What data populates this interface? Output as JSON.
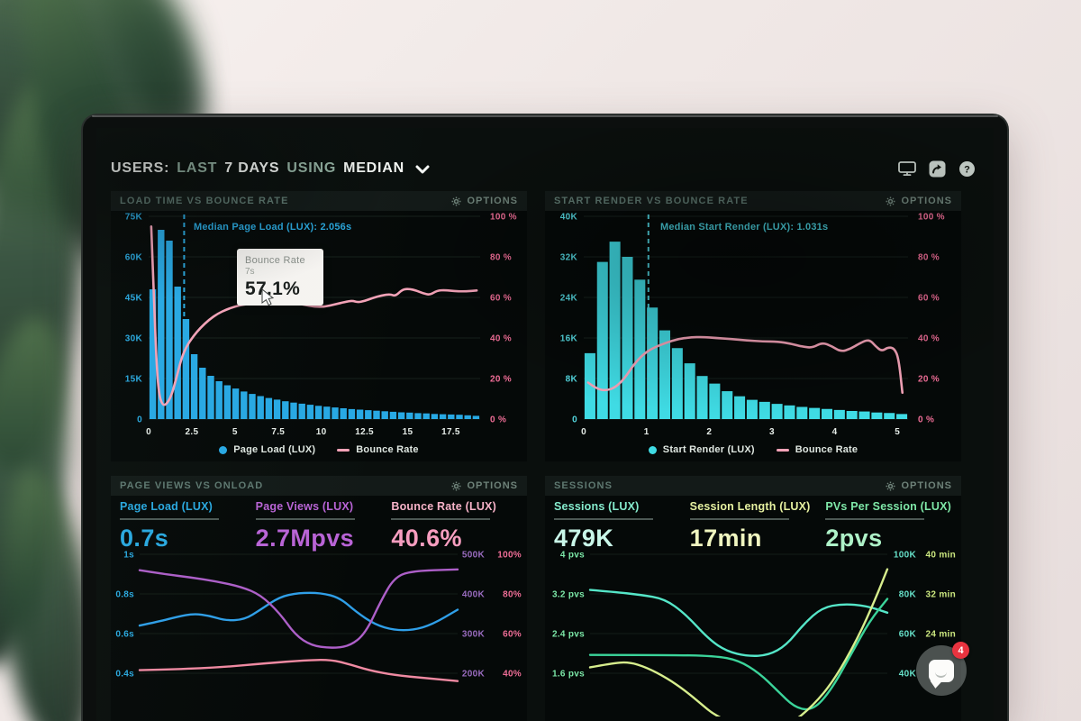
{
  "header": {
    "segments": [
      "USERS:",
      "LAST",
      "7 DAYS",
      "USING",
      "MEDIAN"
    ]
  },
  "ui": {
    "options_label": "OPTIONS",
    "help_glyph": "?"
  },
  "chat": {
    "badge": "4"
  },
  "panels": {
    "tl": {
      "title": "LOAD TIME VS BOUNCE RATE",
      "median_label": "Median Page Load (LUX): 2.056s",
      "tooltip": {
        "title": "Bounce Rate",
        "sub": "7s",
        "value": "57.1%"
      },
      "legend": [
        "Page Load (LUX)",
        "Bounce Rate"
      ],
      "chart_data": {
        "type": "histogram+line",
        "y_left": [
          "75K",
          "60K",
          "45K",
          "30K",
          "15K",
          "0"
        ],
        "y_right": [
          "100 %",
          "80 %",
          "60 %",
          "40 %",
          "20 %",
          "0 %"
        ],
        "x_labels": [
          "0",
          "2.5",
          "5",
          "7.5",
          "10",
          "12.5",
          "15",
          "17.5"
        ],
        "bar_max": 75,
        "x_max": 19.2,
        "line_max": 100,
        "median_x": 2.056,
        "bars": [
          48,
          70,
          66,
          49,
          37,
          24,
          19,
          16,
          14,
          12.5,
          11.3,
          10.2,
          9.3,
          8.5,
          7.8,
          7.2,
          6.6,
          6.1,
          5.7,
          5.3,
          4.9,
          4.6,
          4.3,
          4.0,
          3.7,
          3.5,
          3.3,
          3.1,
          2.9,
          2.7,
          2.5,
          2.4,
          2.2,
          2.1,
          1.9,
          1.8,
          1.7,
          1.6,
          1.4,
          1.2
        ],
        "line": [
          [
            0.15,
            95
          ],
          [
            0.3,
            62
          ],
          [
            0.45,
            28
          ],
          [
            0.6,
            12
          ],
          [
            0.8,
            7
          ],
          [
            1.0,
            7
          ],
          [
            1.3,
            11
          ],
          [
            1.6,
            20
          ],
          [
            1.9,
            30
          ],
          [
            2.2,
            36
          ],
          [
            2.6,
            41
          ],
          [
            3.0,
            45
          ],
          [
            3.5,
            49
          ],
          [
            4.0,
            52
          ],
          [
            4.5,
            54
          ],
          [
            5.0,
            55.5
          ],
          [
            5.5,
            56.5
          ],
          [
            6.0,
            57
          ],
          [
            6.5,
            57
          ],
          [
            7.0,
            57.1
          ],
          [
            7.5,
            57.6
          ],
          [
            8.0,
            57.6
          ],
          [
            8.5,
            57.2
          ],
          [
            9.0,
            56.4
          ],
          [
            9.6,
            55.4
          ],
          [
            10.2,
            55.4
          ],
          [
            10.8,
            56.6
          ],
          [
            11.4,
            57.8
          ],
          [
            11.8,
            58.4
          ],
          [
            12.1,
            57.6
          ],
          [
            12.5,
            58.2
          ],
          [
            13.0,
            59.8
          ],
          [
            13.5,
            61
          ],
          [
            14.0,
            61.6
          ],
          [
            14.3,
            60.6
          ],
          [
            14.7,
            64
          ],
          [
            15.1,
            64.2
          ],
          [
            15.5,
            63.4
          ],
          [
            15.9,
            62
          ],
          [
            16.3,
            61.2
          ],
          [
            16.7,
            63.4
          ],
          [
            17.2,
            63.6
          ],
          [
            17.8,
            63
          ],
          [
            18.4,
            63
          ],
          [
            19.0,
            63.4
          ]
        ],
        "colors": {
          "bars": "#28a9e4",
          "line": "#f4a3b8",
          "median": "#2aa9e0",
          "axis_left": "#2aa9e0",
          "axis_right": "#ee6d96",
          "axis_x": "#e6ede8"
        }
      }
    },
    "tr": {
      "title": "START RENDER VS BOUNCE RATE",
      "median_label": "Median Start Render (LUX): 1.031s",
      "legend": [
        "Start Render (LUX)",
        "Bounce Rate"
      ],
      "chart_data": {
        "type": "histogram+line",
        "y_left": [
          "40K",
          "32K",
          "24K",
          "16K",
          "8K",
          "0"
        ],
        "y_right": [
          "100 %",
          "80 %",
          "60 %",
          "40 %",
          "20 %",
          "0 %"
        ],
        "x_labels": [
          "0",
          "1",
          "2",
          "3",
          "4",
          "5"
        ],
        "bar_max": 40,
        "x_max": 5.17,
        "line_max": 100,
        "median_x": 1.031,
        "bars": [
          13,
          31,
          35,
          32,
          27.5,
          22,
          17.5,
          14,
          11,
          8.5,
          7,
          5.5,
          4.5,
          3.8,
          3.4,
          3.0,
          2.7,
          2.4,
          2.2,
          2.0,
          1.8,
          1.6,
          1.5,
          1.3,
          1.2,
          1.0
        ],
        "line": [
          [
            0.07,
            18
          ],
          [
            0.2,
            15
          ],
          [
            0.35,
            14
          ],
          [
            0.5,
            15.5
          ],
          [
            0.65,
            20
          ],
          [
            0.8,
            27
          ],
          [
            0.95,
            32
          ],
          [
            1.1,
            35
          ],
          [
            1.3,
            37.5
          ],
          [
            1.5,
            39.5
          ],
          [
            1.7,
            40.3
          ],
          [
            1.9,
            40.5
          ],
          [
            2.1,
            40
          ],
          [
            2.35,
            39.5
          ],
          [
            2.6,
            38.8
          ],
          [
            2.85,
            38.3
          ],
          [
            3.1,
            38.2
          ],
          [
            3.3,
            37.2
          ],
          [
            3.5,
            35.6
          ],
          [
            3.65,
            35.2
          ],
          [
            3.8,
            37.8
          ],
          [
            3.95,
            36
          ],
          [
            4.1,
            33.2
          ],
          [
            4.25,
            34.6
          ],
          [
            4.4,
            37.4
          ],
          [
            4.55,
            39.4
          ],
          [
            4.65,
            36
          ],
          [
            4.75,
            33.4
          ],
          [
            4.85,
            35.4
          ],
          [
            4.95,
            35
          ],
          [
            5.02,
            30
          ],
          [
            5.08,
            13
          ]
        ],
        "colors": {
          "bars": "#3fdbe4",
          "line": "#f4a3b8",
          "median": "#4fd0dc",
          "axis_left": "#53d6de",
          "axis_right": "#ee6d96",
          "axis_x": "#e6ede8"
        }
      }
    },
    "bl": {
      "title": "PAGE VIEWS VS ONLOAD",
      "metrics": [
        {
          "label": "Page Load (LUX)",
          "value": "0.7s",
          "color": "#2aa9e0"
        },
        {
          "label": "Page Views (LUX)",
          "value": "2.7Mpvs",
          "color": "#b964d6"
        },
        {
          "label": "Bounce Rate (LUX)",
          "value": "40.6%",
          "color": "#f79dbf"
        }
      ],
      "chart_data": {
        "type": "line",
        "y_left": [
          "1s",
          "0.8s",
          "0.6s",
          "0.4s"
        ],
        "right_rows": [
          [
            "500K",
            "100%"
          ],
          [
            "400K",
            "80%"
          ],
          [
            "300K",
            "60%"
          ],
          [
            "200K",
            "40%"
          ]
        ],
        "series": [
          {
            "name": "Page Load (LUX)",
            "unit": "s",
            "color": "#2f9fe8",
            "min": 0.204,
            "max": 1.027,
            "points": [
              [
                0,
                0.64
              ],
              [
                0.06,
                0.66
              ],
              [
                0.12,
                0.685
              ],
              [
                0.17,
                0.7
              ],
              [
                0.22,
                0.69
              ],
              [
                0.27,
                0.665
              ],
              [
                0.33,
                0.67
              ],
              [
                0.38,
                0.72
              ],
              [
                0.44,
                0.785
              ],
              [
                0.5,
                0.805
              ],
              [
                0.57,
                0.805
              ],
              [
                0.63,
                0.78
              ],
              [
                0.68,
                0.71
              ],
              [
                0.74,
                0.645
              ],
              [
                0.8,
                0.617
              ],
              [
                0.86,
                0.617
              ],
              [
                0.92,
                0.645
              ],
              [
                1,
                0.72
              ]
            ]
          },
          {
            "name": "Page Views (LUX)",
            "unit": "K",
            "color": "#ad5fc8",
            "min": 102,
            "max": 514,
            "points": [
              [
                0,
                460
              ],
              [
                0.08,
                450
              ],
              [
                0.16,
                442
              ],
              [
                0.24,
                432
              ],
              [
                0.32,
                418
              ],
              [
                0.38,
                398
              ],
              [
                0.44,
                352
              ],
              [
                0.49,
                296
              ],
              [
                0.54,
                270
              ],
              [
                0.6,
                263
              ],
              [
                0.66,
                268
              ],
              [
                0.71,
                300
              ],
              [
                0.76,
                385
              ],
              [
                0.8,
                440
              ],
              [
                0.85,
                458
              ],
              [
                1,
                462
              ]
            ]
          },
          {
            "name": "Bounce Rate (LUX)",
            "unit": "%",
            "color": "#f08aa2",
            "min": 20.4,
            "max": 102.7,
            "points": [
              [
                0,
                41.5
              ],
              [
                0.12,
                42
              ],
              [
                0.26,
                43
              ],
              [
                0.4,
                45
              ],
              [
                0.52,
                46.5
              ],
              [
                0.6,
                46.8
              ],
              [
                0.66,
                44.5
              ],
              [
                0.72,
                41.5
              ],
              [
                0.8,
                39
              ],
              [
                0.9,
                37.5
              ],
              [
                1,
                36
              ]
            ]
          }
        ],
        "colors": {
          "axis_left": "#2aa9e0",
          "right_col1": "#9a6cc0",
          "right_col2": "#ee6d96"
        }
      }
    },
    "br": {
      "title": "SESSIONS",
      "metrics": [
        {
          "label": "Sessions (LUX)",
          "value": "479K",
          "color": "#85ebcd"
        },
        {
          "label": "Session Length (LUX)",
          "value": "17min",
          "color": "#e6f1a0"
        },
        {
          "label": "PVs Per Session (LUX)",
          "value": "2pvs",
          "color": "#7fe8a8"
        }
      ],
      "chart_data": {
        "type": "line",
        "y_left": [
          "4 pvs",
          "3.2 pvs",
          "2.4 pvs",
          "1.6 pvs"
        ],
        "right_rows": [
          [
            "100K",
            "40 min"
          ],
          [
            "80K",
            "32 min"
          ],
          [
            "60K",
            "24 min"
          ],
          [
            "40K",
            ""
          ]
        ],
        "series": [
          {
            "name": "Sessions (LUX)",
            "unit": "K",
            "color": "#55e6c8",
            "min": 20.4,
            "max": 102.7,
            "points": [
              [
                0,
                82
              ],
              [
                0.08,
                81
              ],
              [
                0.17,
                79.5
              ],
              [
                0.25,
                77.5
              ],
              [
                0.32,
                70
              ],
              [
                0.4,
                57
              ],
              [
                0.46,
                51
              ],
              [
                0.53,
                48.5
              ],
              [
                0.6,
                49
              ],
              [
                0.66,
                54
              ],
              [
                0.72,
                65
              ],
              [
                0.78,
                73
              ],
              [
                0.85,
                75
              ],
              [
                0.93,
                74
              ],
              [
                1,
                70.5
              ]
            ]
          },
          {
            "name": "PVs Per Session (LUX)",
            "unit": "pvs",
            "color": "#3bd49a",
            "min": 0.818,
            "max": 4.109,
            "points": [
              [
                0,
                1.97
              ],
              [
                0.25,
                1.97
              ],
              [
                0.42,
                1.95
              ],
              [
                0.5,
                1.86
              ],
              [
                0.57,
                1.6
              ],
              [
                0.63,
                1.25
              ],
              [
                0.69,
                0.9
              ],
              [
                0.75,
                0.85
              ],
              [
                0.81,
                1.25
              ],
              [
                0.88,
                2.0
              ],
              [
                0.94,
                2.65
              ],
              [
                1,
                3.1
              ]
            ]
          },
          {
            "name": "Session Length (LUX)",
            "unit": "min",
            "color": "#d7ee8d",
            "min": 8.2,
            "max": 41.1,
            "points": [
              [
                0,
                17.2
              ],
              [
                0.07,
                18
              ],
              [
                0.13,
                18.3
              ],
              [
                0.19,
                17.2
              ],
              [
                0.26,
                15
              ],
              [
                0.32,
                12.5
              ],
              [
                0.37,
                10
              ],
              [
                0.42,
                7.5
              ],
              [
                0.5,
                5.5
              ],
              [
                0.6,
                4.8
              ],
              [
                0.68,
                6
              ],
              [
                0.75,
                9.5
              ],
              [
                0.82,
                14.5
              ],
              [
                0.9,
                23
              ],
              [
                0.96,
                31
              ],
              [
                1,
                37
              ]
            ]
          }
        ],
        "colors": {
          "axis_left": "#7ce8a8",
          "right_col1": "#66e0c8",
          "right_col2": "#cbe77f"
        }
      }
    }
  }
}
